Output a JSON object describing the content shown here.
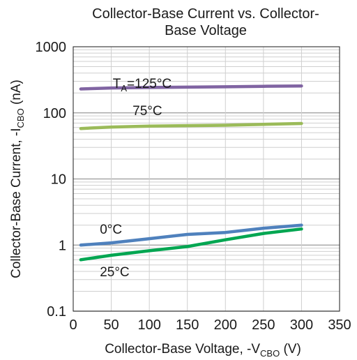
{
  "chart_data": {
    "type": "line",
    "title_line1": "Collector-Base Current vs. Collector-",
    "title_line2": "Base Voltage",
    "xlabel": {
      "text": "Collector-Base Voltage, -V",
      "sub": "CBO",
      "suffix": " (V)"
    },
    "ylabel": {
      "text": "Collector-Base Current, -I",
      "sub": "CBO",
      "suffix": " (nA)"
    },
    "xlim": [
      0,
      350
    ],
    "ylim": [
      0.1,
      1000
    ],
    "yscale": "log",
    "grid": true,
    "x_ticks": [
      "0",
      "50",
      "100",
      "150",
      "200",
      "250",
      "300",
      "350"
    ],
    "y_ticks": [
      "0.1",
      "1",
      "10",
      "100",
      "1000"
    ],
    "series": [
      {
        "name": "T",
        "name_sub": "A",
        "name_suffix": "=125°C",
        "color": "#8064a2",
        "x": [
          10,
          50,
          100,
          150,
          200,
          250,
          300
        ],
        "y": [
          230,
          238,
          242,
          245,
          248,
          252,
          255
        ]
      },
      {
        "name": "75°C",
        "color": "#9bbb59",
        "x": [
          10,
          50,
          100,
          150,
          200,
          250,
          300
        ],
        "y": [
          58,
          61,
          63,
          64,
          65,
          67,
          69
        ]
      },
      {
        "name": "0°C",
        "color": "#4f81bd",
        "x": [
          10,
          50,
          100,
          150,
          200,
          250,
          300
        ],
        "y": [
          1.0,
          1.08,
          1.25,
          1.45,
          1.55,
          1.8,
          2.0
        ]
      },
      {
        "name": "25°C",
        "color": "#00a651",
        "x": [
          10,
          50,
          100,
          150,
          200,
          250,
          300
        ],
        "y": [
          0.6,
          0.7,
          0.82,
          0.95,
          1.2,
          1.5,
          1.75
        ]
      }
    ]
  }
}
